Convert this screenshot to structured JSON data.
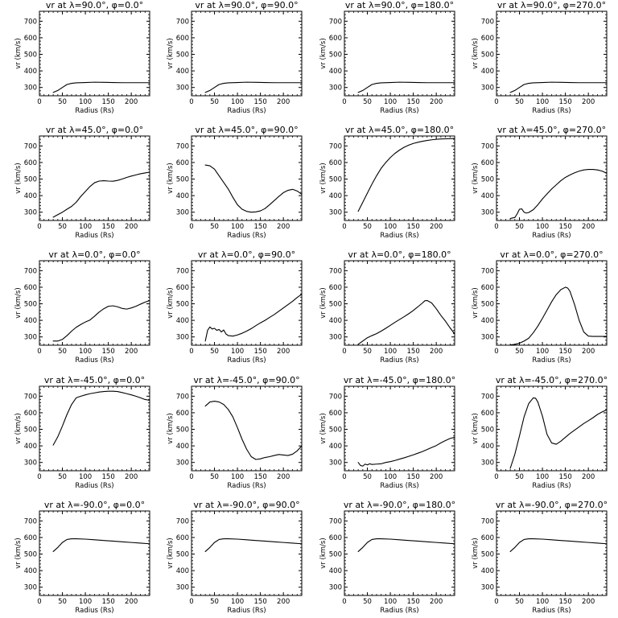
{
  "figure": {
    "x_ticks": [
      "0",
      "50",
      "100",
      "150",
      "200"
    ],
    "y_ticks": [
      "300",
      "400",
      "500",
      "600",
      "700"
    ],
    "xlabel": "Radius (Rs)",
    "ylabel": "vr (km/s)"
  },
  "chart_data": [
    {
      "type": "line",
      "title": "vr at λ=90.0°, φ=0.0°",
      "xlabel": "Radius (Rs)",
      "ylabel": "vr (km/s)",
      "xlim": [
        0,
        240
      ],
      "ylim": [
        250,
        760
      ],
      "x": [
        30,
        40,
        50,
        60,
        70,
        80,
        100,
        120,
        140,
        160,
        180,
        200,
        220,
        240
      ],
      "y": [
        270,
        282,
        300,
        318,
        325,
        328,
        330,
        332,
        331,
        330,
        329,
        329,
        329,
        329
      ]
    },
    {
      "type": "line",
      "title": "vr at λ=90.0°, φ=90.0°",
      "xlabel": "Radius (Rs)",
      "ylabel": "vr (km/s)",
      "xlim": [
        0,
        240
      ],
      "ylim": [
        250,
        760
      ],
      "x": [
        30,
        40,
        50,
        60,
        70,
        80,
        100,
        120,
        140,
        160,
        180,
        200,
        220,
        240
      ],
      "y": [
        270,
        282,
        300,
        318,
        325,
        328,
        330,
        332,
        331,
        330,
        329,
        329,
        329,
        329
      ]
    },
    {
      "type": "line",
      "title": "vr at λ=90.0°, φ=180.0°",
      "xlabel": "Radius (Rs)",
      "ylabel": "vr (km/s)",
      "xlim": [
        0,
        240
      ],
      "ylim": [
        250,
        760
      ],
      "x": [
        30,
        40,
        50,
        60,
        70,
        80,
        100,
        120,
        140,
        160,
        180,
        200,
        220,
        240
      ],
      "y": [
        270,
        282,
        300,
        318,
        325,
        328,
        330,
        332,
        331,
        330,
        329,
        329,
        329,
        329
      ]
    },
    {
      "type": "line",
      "title": "vr at λ=90.0°, φ=270.0°",
      "xlabel": "Radius (Rs)",
      "ylabel": "vr (km/s)",
      "xlim": [
        0,
        240
      ],
      "ylim": [
        250,
        760
      ],
      "x": [
        30,
        40,
        50,
        60,
        70,
        80,
        100,
        120,
        140,
        160,
        180,
        200,
        220,
        240
      ],
      "y": [
        270,
        282,
        300,
        318,
        325,
        328,
        330,
        332,
        331,
        330,
        329,
        329,
        329,
        329
      ]
    },
    {
      "type": "line",
      "title": "vr at λ=45.0°, φ=0.0°",
      "xlabel": "Radius (Rs)",
      "ylabel": "vr (km/s)",
      "xlim": [
        0,
        240
      ],
      "ylim": [
        250,
        760
      ],
      "x": [
        30,
        40,
        50,
        60,
        70,
        80,
        90,
        100,
        110,
        120,
        130,
        140,
        150,
        160,
        170,
        180,
        190,
        200,
        210,
        220,
        230,
        240
      ],
      "y": [
        270,
        285,
        300,
        318,
        335,
        360,
        395,
        425,
        455,
        478,
        488,
        490,
        488,
        487,
        492,
        500,
        510,
        518,
        525,
        532,
        537,
        542
      ]
    },
    {
      "type": "line",
      "title": "vr at λ=45.0°, φ=90.0°",
      "xlabel": "Radius (Rs)",
      "ylabel": "vr (km/s)",
      "xlim": [
        0,
        240
      ],
      "ylim": [
        250,
        760
      ],
      "x": [
        30,
        40,
        50,
        60,
        70,
        80,
        90,
        100,
        110,
        120,
        130,
        140,
        150,
        160,
        170,
        180,
        190,
        200,
        210,
        220,
        230,
        240
      ],
      "y": [
        585,
        580,
        560,
        520,
        480,
        440,
        390,
        345,
        318,
        305,
        300,
        302,
        308,
        322,
        345,
        370,
        395,
        418,
        432,
        438,
        428,
        408
      ]
    },
    {
      "type": "line",
      "title": "vr at λ=45.0°, φ=180.0°",
      "xlabel": "Radius (Rs)",
      "ylabel": "vr (km/s)",
      "xlim": [
        0,
        240
      ],
      "ylim": [
        250,
        760
      ],
      "x": [
        30,
        40,
        50,
        60,
        70,
        80,
        90,
        100,
        110,
        120,
        130,
        140,
        150,
        160,
        170,
        180,
        190,
        200,
        210,
        220,
        230,
        240
      ],
      "y": [
        305,
        360,
        415,
        470,
        520,
        565,
        600,
        630,
        655,
        675,
        692,
        705,
        715,
        722,
        728,
        733,
        737,
        740,
        742,
        743,
        744,
        745
      ]
    },
    {
      "type": "line",
      "title": "vr at λ=45.0°, φ=270.0°",
      "xlabel": "Radius (Rs)",
      "ylabel": "vr (km/s)",
      "xlim": [
        0,
        240
      ],
      "ylim": [
        250,
        760
      ],
      "x": [
        30,
        40,
        45,
        50,
        55,
        60,
        65,
        70,
        80,
        90,
        100,
        110,
        120,
        130,
        140,
        150,
        160,
        170,
        180,
        190,
        200,
        210,
        220,
        230,
        240
      ],
      "y": [
        262,
        268,
        290,
        318,
        320,
        300,
        295,
        298,
        315,
        345,
        380,
        410,
        440,
        465,
        490,
        510,
        525,
        538,
        548,
        555,
        558,
        558,
        555,
        548,
        535
      ]
    },
    {
      "type": "line",
      "title": "vr at λ=0.0°, φ=0.0°",
      "xlabel": "Radius (Rs)",
      "ylabel": "vr (km/s)",
      "xlim": [
        0,
        240
      ],
      "ylim": [
        250,
        760
      ],
      "x": [
        30,
        40,
        50,
        60,
        70,
        80,
        90,
        100,
        110,
        120,
        130,
        140,
        150,
        160,
        170,
        180,
        190,
        200,
        210,
        220,
        230,
        240
      ],
      "y": [
        275,
        275,
        285,
        308,
        335,
        358,
        375,
        390,
        402,
        425,
        450,
        470,
        485,
        488,
        482,
        472,
        468,
        475,
        485,
        498,
        510,
        520
      ]
    },
    {
      "type": "line",
      "title": "vr at λ=0.0°, φ=90.0°",
      "xlabel": "Radius (Rs)",
      "ylabel": "vr (km/s)",
      "xlim": [
        0,
        240
      ],
      "ylim": [
        250,
        760
      ],
      "x": [
        30,
        35,
        40,
        45,
        50,
        55,
        60,
        65,
        70,
        75,
        80,
        90,
        100,
        110,
        120,
        130,
        140,
        150,
        160,
        170,
        180,
        190,
        200,
        210,
        220,
        230,
        240
      ],
      "y": [
        275,
        340,
        360,
        348,
        352,
        340,
        345,
        330,
        342,
        318,
        308,
        305,
        312,
        322,
        335,
        350,
        368,
        385,
        400,
        418,
        435,
        455,
        475,
        495,
        515,
        538,
        558
      ]
    },
    {
      "type": "line",
      "title": "vr at λ=0.0°, φ=180.0°",
      "xlabel": "Radius (Rs)",
      "ylabel": "vr (km/s)",
      "xlim": [
        0,
        240
      ],
      "ylim": [
        250,
        760
      ],
      "x": [
        30,
        40,
        50,
        60,
        70,
        80,
        90,
        100,
        110,
        120,
        130,
        140,
        150,
        160,
        170,
        175,
        180,
        190,
        200,
        210,
        220,
        230,
        240
      ],
      "y": [
        255,
        275,
        295,
        308,
        320,
        335,
        352,
        370,
        388,
        405,
        422,
        440,
        460,
        482,
        505,
        518,
        520,
        505,
        470,
        430,
        395,
        355,
        318
      ]
    },
    {
      "type": "line",
      "title": "vr at λ=0.0°, φ=270.0°",
      "xlabel": "Radius (Rs)",
      "ylabel": "vr (km/s)",
      "xlim": [
        0,
        240
      ],
      "ylim": [
        250,
        760
      ],
      "x": [
        30,
        40,
        50,
        60,
        70,
        80,
        90,
        100,
        110,
        120,
        130,
        140,
        150,
        155,
        160,
        170,
        180,
        190,
        200,
        210,
        220,
        230,
        240
      ],
      "y": [
        252,
        255,
        262,
        275,
        292,
        325,
        365,
        412,
        462,
        512,
        555,
        585,
        600,
        595,
        575,
        495,
        400,
        330,
        305,
        303,
        303,
        303,
        303
      ]
    },
    {
      "type": "line",
      "title": "vr at λ=-45.0°, φ=0.0°",
      "xlabel": "Radius (Rs)",
      "ylabel": "vr (km/s)",
      "xlim": [
        0,
        240
      ],
      "ylim": [
        250,
        760
      ],
      "x": [
        30,
        40,
        50,
        60,
        70,
        80,
        90,
        100,
        110,
        120,
        130,
        140,
        150,
        160,
        170,
        180,
        190,
        200,
        210,
        220,
        230,
        240
      ],
      "y": [
        405,
        455,
        520,
        590,
        650,
        690,
        700,
        708,
        715,
        720,
        725,
        728,
        730,
        730,
        728,
        722,
        715,
        708,
        700,
        690,
        680,
        675
      ]
    },
    {
      "type": "line",
      "title": "vr at λ=-45.0°, φ=90.0°",
      "xlabel": "Radius (Rs)",
      "ylabel": "vr (km/s)",
      "xlim": [
        0,
        240
      ],
      "ylim": [
        250,
        760
      ],
      "x": [
        30,
        40,
        50,
        60,
        70,
        80,
        90,
        100,
        110,
        120,
        130,
        140,
        150,
        160,
        170,
        180,
        190,
        200,
        210,
        220,
        230,
        240
      ],
      "y": [
        640,
        665,
        670,
        665,
        650,
        620,
        575,
        510,
        440,
        380,
        335,
        318,
        322,
        330,
        335,
        342,
        348,
        345,
        342,
        350,
        370,
        400
      ]
    },
    {
      "type": "line",
      "title": "vr at λ=-45.0°, φ=180.0°",
      "xlabel": "Radius (Rs)",
      "ylabel": "vr (km/s)",
      "xlim": [
        0,
        240
      ],
      "ylim": [
        250,
        760
      ],
      "x": [
        30,
        35,
        40,
        45,
        50,
        55,
        60,
        70,
        80,
        90,
        100,
        110,
        120,
        130,
        140,
        150,
        160,
        170,
        180,
        190,
        200,
        210,
        220,
        230,
        240
      ],
      "y": [
        300,
        282,
        278,
        290,
        285,
        292,
        288,
        290,
        292,
        300,
        305,
        312,
        320,
        328,
        337,
        346,
        356,
        366,
        378,
        390,
        402,
        418,
        432,
        445,
        452
      ]
    },
    {
      "type": "line",
      "title": "vr at λ=-45.0°, φ=270.0°",
      "xlabel": "Radius (Rs)",
      "ylabel": "vr (km/s)",
      "xlim": [
        0,
        240
      ],
      "ylim": [
        250,
        760
      ],
      "x": [
        30,
        40,
        50,
        60,
        70,
        80,
        85,
        90,
        100,
        110,
        120,
        130,
        140,
        150,
        160,
        170,
        180,
        190,
        200,
        210,
        220,
        230,
        240
      ],
      "y": [
        265,
        350,
        460,
        575,
        655,
        690,
        688,
        665,
        580,
        470,
        418,
        410,
        428,
        452,
        475,
        495,
        515,
        535,
        552,
        570,
        590,
        605,
        618
      ]
    },
    {
      "type": "line",
      "title": "vr at λ=-90.0°, φ=0.0°",
      "xlabel": "Radius (Rs)",
      "ylabel": "vr (km/s)",
      "xlim": [
        0,
        240
      ],
      "ylim": [
        250,
        760
      ],
      "x": [
        30,
        40,
        50,
        60,
        70,
        80,
        100,
        120,
        140,
        160,
        180,
        200,
        220,
        240
      ],
      "y": [
        515,
        540,
        570,
        588,
        592,
        592,
        590,
        586,
        582,
        578,
        574,
        570,
        566,
        562
      ]
    },
    {
      "type": "line",
      "title": "vr at λ=-90.0°, φ=90.0°",
      "xlabel": "Radius (Rs)",
      "ylabel": "vr (km/s)",
      "xlim": [
        0,
        240
      ],
      "ylim": [
        250,
        760
      ],
      "x": [
        30,
        40,
        50,
        60,
        70,
        80,
        100,
        120,
        140,
        160,
        180,
        200,
        220,
        240
      ],
      "y": [
        515,
        540,
        570,
        588,
        592,
        592,
        590,
        586,
        582,
        578,
        574,
        570,
        566,
        562
      ]
    },
    {
      "type": "line",
      "title": "vr at λ=-90.0°, φ=180.0°",
      "xlabel": "Radius (Rs)",
      "ylabel": "vr (km/s)",
      "xlim": [
        0,
        240
      ],
      "ylim": [
        250,
        760
      ],
      "x": [
        30,
        40,
        50,
        60,
        70,
        80,
        100,
        120,
        140,
        160,
        180,
        200,
        220,
        240
      ],
      "y": [
        515,
        540,
        570,
        588,
        592,
        592,
        590,
        586,
        582,
        578,
        574,
        570,
        566,
        562
      ]
    },
    {
      "type": "line",
      "title": "vr at λ=-90.0°, φ=270.0°",
      "xlabel": "Radius (Rs)",
      "ylabel": "vr (km/s)",
      "xlim": [
        0,
        240
      ],
      "ylim": [
        250,
        760
      ],
      "x": [
        30,
        40,
        50,
        60,
        70,
        80,
        100,
        120,
        140,
        160,
        180,
        200,
        220,
        240
      ],
      "y": [
        515,
        540,
        570,
        588,
        592,
        592,
        590,
        586,
        582,
        578,
        574,
        570,
        566,
        562
      ]
    }
  ]
}
